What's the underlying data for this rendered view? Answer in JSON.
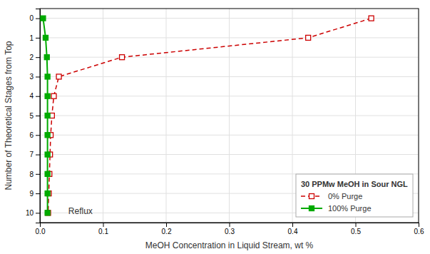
{
  "chart_data": {
    "type": "line",
    "title": "30 PPMw MeOH in Sour NGL",
    "x_label": "MeOH Concentration in Liquid Stream, wt %",
    "y_label": "Number of Theoretical Stages from Top",
    "annotations": [
      "Reflux"
    ],
    "series": [
      {
        "name": "0% Purge",
        "color": "#cc0000",
        "marker": "square",
        "line_style": "dashed",
        "x": [
          0.525,
          0.425,
          0.13,
          0.03,
          0.022,
          0.019,
          0.017,
          0.016,
          0.015,
          0.014,
          0.013
        ],
        "values": [
          0,
          1,
          2,
          3,
          4,
          5,
          6,
          7,
          8,
          9,
          10
        ]
      },
      {
        "name": "100% Purge",
        "color": "#00aa00",
        "marker": "square",
        "line_style": "solid",
        "x": [
          0.005,
          0.009,
          0.011,
          0.012,
          0.012,
          0.012,
          0.012,
          0.012,
          0.012,
          0.012,
          0.012
        ],
        "values": [
          0,
          1,
          2,
          3,
          4,
          5,
          6,
          7,
          8,
          9,
          10
        ]
      }
    ],
    "xlim": [
      0.0,
      0.6
    ],
    "xticks": [
      {
        "value": 0.0,
        "label": "0.0"
      },
      0.1,
      0.2,
      0.3,
      0.4,
      0.5,
      0.6
    ],
    "ylim": [
      10.5,
      -0.5
    ],
    "yticks": [
      0,
      1,
      2,
      3,
      4,
      5,
      6,
      7,
      8,
      9,
      10
    ],
    "grid": true,
    "legend": "lower right"
  }
}
